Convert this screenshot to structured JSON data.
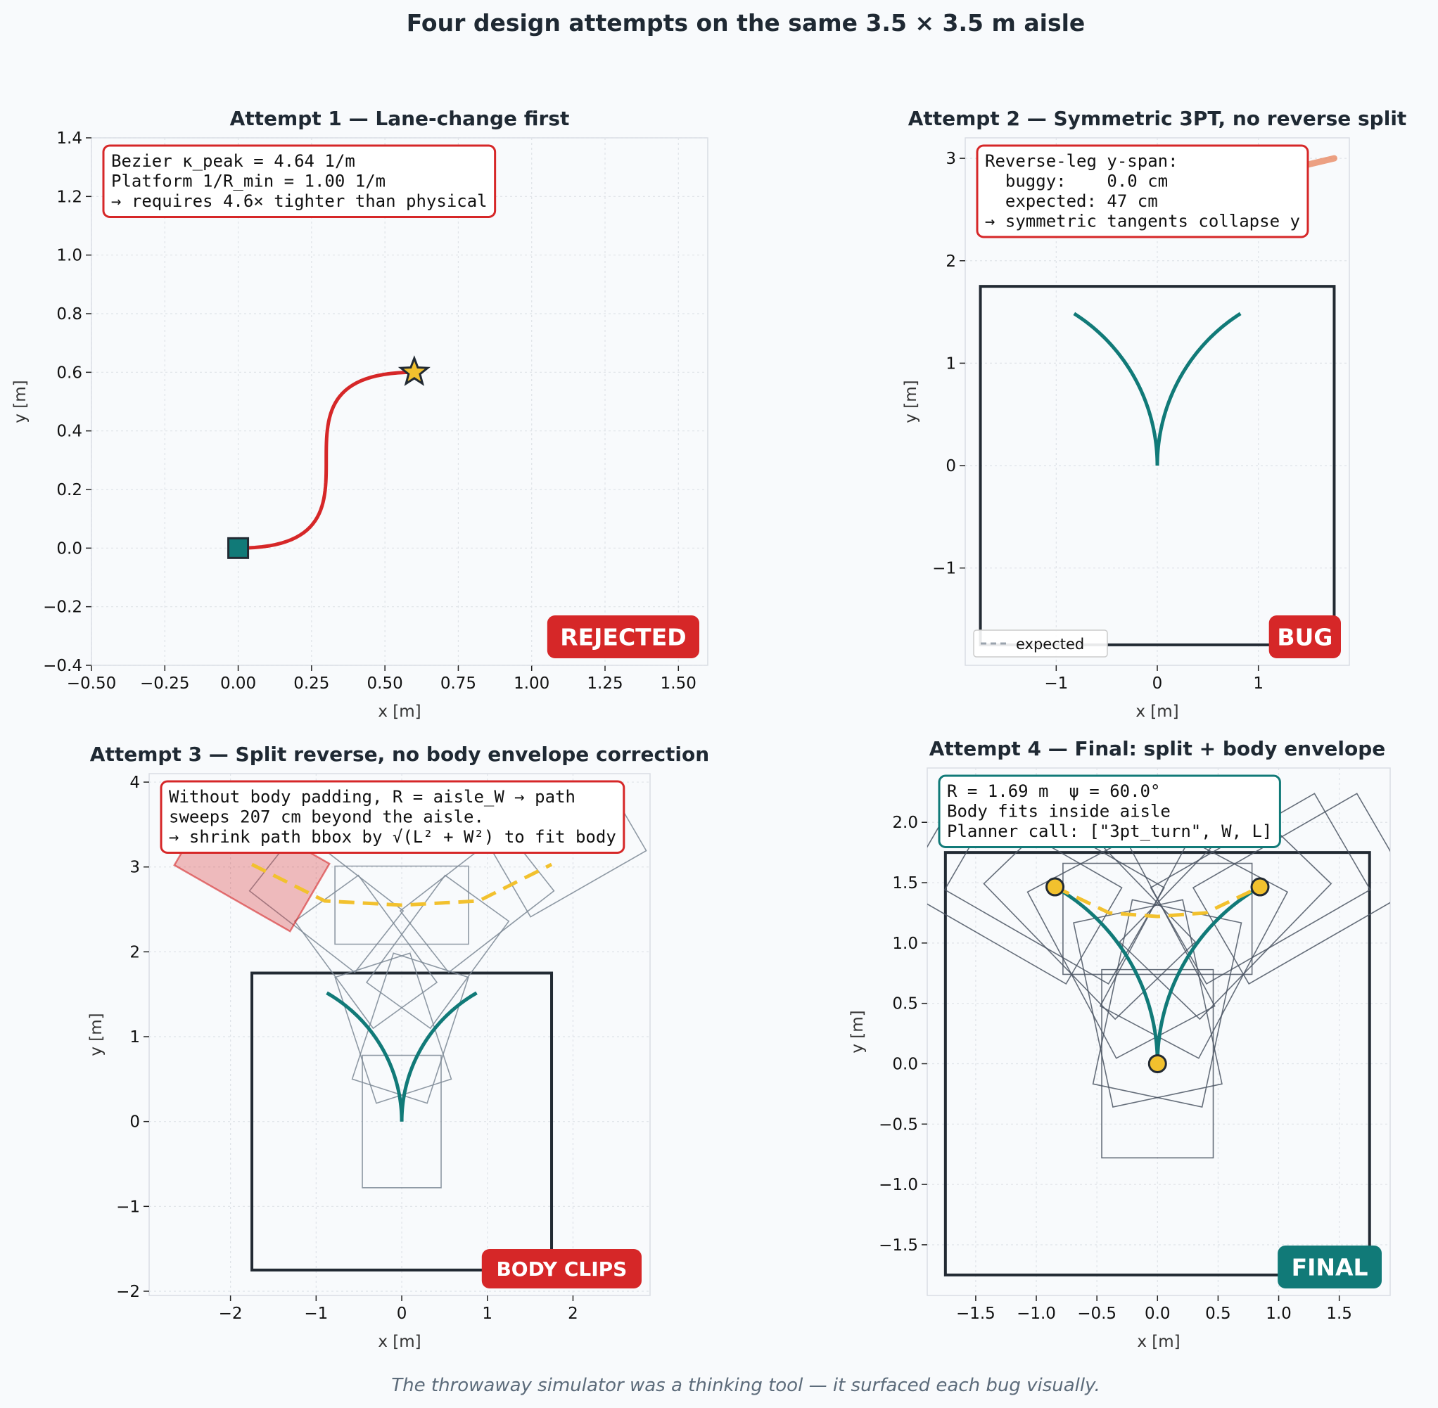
{
  "figure": {
    "title": "Four design attempts on the same 3.5 × 3.5 m aisle",
    "footer": "The throwaway simulator was a thinking tool — it surfaced each bug visually."
  },
  "colors": {
    "background": "#f8fafc",
    "teal": "#117a78",
    "red": "#d62728",
    "yellow": "#f2c12e",
    "aisle": "#222a33",
    "body_outline": "#7b8794"
  },
  "chart_data": [
    {
      "id": "attempt1",
      "type": "line",
      "title": "Attempt 1 — Lane-change first",
      "xlabel": "x [m]",
      "ylabel": "y [m]",
      "xlim": [
        -0.5,
        1.6
      ],
      "ylim": [
        -0.4,
        1.4
      ],
      "xticks": [
        -0.5,
        -0.25,
        0.0,
        0.25,
        0.5,
        0.75,
        1.0,
        1.25,
        1.5
      ],
      "xtick_labels": [
        "−0.50",
        "−0.25",
        "0.00",
        "0.25",
        "0.50",
        "0.75",
        "1.00",
        "1.25",
        "1.50"
      ],
      "yticks": [
        -0.4,
        -0.2,
        0.0,
        0.2,
        0.4,
        0.6,
        0.8,
        1.0,
        1.2,
        1.4
      ],
      "ytick_labels": [
        "−0.4",
        "−0.2",
        "0.0",
        "0.2",
        "0.4",
        "0.6",
        "0.8",
        "1.0",
        "1.2",
        "1.4"
      ],
      "grid": true,
      "path": {
        "type": "bezier",
        "control_points": [
          [
            0.0,
            0.0
          ],
          [
            0.6,
            0.0
          ],
          [
            0.0,
            0.6
          ],
          [
            0.6,
            0.6
          ]
        ],
        "color": "#d62728"
      },
      "start_marker": {
        "x": 0.0,
        "y": 0.0,
        "shape": "square",
        "color": "#117a78"
      },
      "goal_marker": {
        "x": 0.6,
        "y": 0.6,
        "shape": "star",
        "color": "#f2c12e"
      },
      "annotation": [
        "Bezier κ_peak = 4.64 1/m",
        "Platform 1/R_min = 1.00 1/m",
        "→ requires 4.6× tighter than physical"
      ],
      "annotation_border": "#d62728",
      "badge": {
        "text": "REJECTED",
        "color": "#d62728"
      }
    },
    {
      "id": "attempt2",
      "type": "line",
      "title": "Attempt 2 — Symmetric 3PT, no reverse split",
      "xlabel": "x [m]",
      "ylabel": "y [m]",
      "xlim": [
        -1.9,
        1.9
      ],
      "ylim": [
        -1.95,
        3.2
      ],
      "xticks": [
        -1,
        0,
        1
      ],
      "xtick_labels": [
        "−1",
        "0",
        "1"
      ],
      "yticks": [
        -1,
        0,
        1,
        2,
        3
      ],
      "ytick_labels": [
        "−1",
        "0",
        "1",
        "2",
        "3"
      ],
      "grid": true,
      "aisle": {
        "x0": -1.75,
        "x1": 1.75,
        "y0": -1.75,
        "y1": 1.75
      },
      "arc_radius": 1.75,
      "arc_angle_deg": 58,
      "arc_color": "#117a78",
      "reverse_leg": {
        "from": [
          1.45,
          2.93
        ],
        "to": [
          1.75,
          3.0
        ],
        "color": "#e8825a"
      },
      "legend": {
        "entries": [
          "expected"
        ],
        "placement": "lower-left"
      },
      "annotation": [
        "Reverse-leg y-span:",
        "  buggy:    0.0 cm",
        "  expected: 47 cm",
        "→ symmetric tangents collapse y"
      ],
      "annotation_border": "#d62728",
      "badge": {
        "text": "BUG",
        "color": "#d62728"
      }
    },
    {
      "id": "attempt3",
      "type": "line",
      "title": "Attempt 3 — Split reverse, no body envelope correction",
      "xlabel": "x [m]",
      "ylabel": "y [m]",
      "xlim": [
        -2.95,
        2.9
      ],
      "ylim": [
        -2.05,
        4.1
      ],
      "xticks": [
        -2,
        -1,
        0,
        1,
        2
      ],
      "xtick_labels": [
        "−2",
        "−1",
        "0",
        "1",
        "2"
      ],
      "yticks": [
        -2,
        -1,
        0,
        1,
        2,
        3,
        4
      ],
      "ytick_labels": [
        "−2",
        "−1",
        "0",
        "1",
        "2",
        "3",
        "4"
      ],
      "grid": true,
      "aisle": {
        "x0": -1.75,
        "x1": 1.75,
        "y0": -1.75,
        "y1": 1.75
      },
      "arc_radius": 1.75,
      "arc_angle_deg": 60,
      "arc_color": "#117a78",
      "body": {
        "length": 1.56,
        "width": 0.92,
        "outline": "#7b8794"
      },
      "body_poses": [
        {
          "x": 0.0,
          "y": 0.0,
          "heading_deg": 0
        },
        {
          "x": 0.1,
          "y": 1.1,
          "heading_deg": -18
        },
        {
          "x": 0.42,
          "y": 2.0,
          "heading_deg": -36
        },
        {
          "x": 0.88,
          "y": 2.6,
          "heading_deg": -52
        },
        {
          "x": -0.1,
          "y": 1.1,
          "heading_deg": 18
        },
        {
          "x": -0.42,
          "y": 2.0,
          "heading_deg": 36
        },
        {
          "x": -0.88,
          "y": 2.6,
          "heading_deg": 52
        },
        {
          "x": 0.0,
          "y": 2.55,
          "heading_deg": 90
        },
        {
          "x": 1.95,
          "y": 3.2,
          "heading_deg": -60
        }
      ],
      "clipped_body": {
        "x": -1.75,
        "y": 3.03,
        "heading_deg": 60,
        "color": "#d62728"
      },
      "reverse_leg": {
        "points": [
          [
            -1.75,
            3.03
          ],
          [
            -0.9,
            2.6
          ],
          [
            0.0,
            2.55
          ],
          [
            0.9,
            2.6
          ],
          [
            1.75,
            3.03
          ]
        ],
        "color": "#f2c12e"
      },
      "annotation": [
        "Without body padding, R = aisle_W → path",
        "sweeps 207 cm beyond the aisle.",
        "→ shrink path bbox by √(L² + W²) to fit body"
      ],
      "annotation_border": "#d62728",
      "badge": {
        "text": "BODY CLIPS",
        "color": "#d62728"
      }
    },
    {
      "id": "attempt4",
      "type": "line",
      "title": "Attempt 4 — Final: split + body envelope",
      "xlabel": "x [m]",
      "ylabel": "y [m]",
      "xlim": [
        -1.9,
        1.92
      ],
      "ylim": [
        -1.92,
        2.45
      ],
      "xticks": [
        -1.5,
        -1.0,
        -0.5,
        0.0,
        0.5,
        1.0,
        1.5
      ],
      "xtick_labels": [
        "−1.5",
        "−1.0",
        "−0.5",
        "0.0",
        "0.5",
        "1.0",
        "1.5"
      ],
      "yticks": [
        -1.5,
        -1.0,
        -0.5,
        0.0,
        0.5,
        1.0,
        1.5,
        2.0
      ],
      "ytick_labels": [
        "−1.5",
        "−1.0",
        "−0.5",
        "0.0",
        "0.5",
        "1.0",
        "1.5",
        "2.0"
      ],
      "grid": true,
      "aisle": {
        "x0": -1.75,
        "x1": 1.75,
        "y0": -1.75,
        "y1": 1.75
      },
      "arc_radius": 1.69,
      "arc_angle_deg": 60,
      "arc_color": "#117a78",
      "body": {
        "length": 1.56,
        "width": 0.92,
        "outline": "#4b5563"
      },
      "body_poses": [
        {
          "x": 0.0,
          "y": 0.0,
          "heading_deg": 0
        },
        {
          "x": 0.08,
          "y": 0.5,
          "heading_deg": -12
        },
        {
          "x": 0.3,
          "y": 0.95,
          "heading_deg": -28
        },
        {
          "x": 0.56,
          "y": 1.25,
          "heading_deg": -44
        },
        {
          "x": 0.85,
          "y": 1.45,
          "heading_deg": -60
        },
        {
          "x": -0.08,
          "y": 0.5,
          "heading_deg": 12
        },
        {
          "x": -0.3,
          "y": 0.95,
          "heading_deg": 28
        },
        {
          "x": -0.56,
          "y": 1.25,
          "heading_deg": 44
        },
        {
          "x": -0.85,
          "y": 1.45,
          "heading_deg": 60
        },
        {
          "x": 0.0,
          "y": 1.2,
          "heading_deg": 90
        },
        {
          "x": 1.2,
          "y": 1.45,
          "heading_deg": -60
        },
        {
          "x": -1.2,
          "y": 1.45,
          "heading_deg": 60
        }
      ],
      "waypoints": [
        [
          0.0,
          0.0
        ],
        [
          -0.846,
          1.465
        ],
        [
          0.846,
          1.465
        ]
      ],
      "waypoint_color": "#f2c12e",
      "reverse_leg": {
        "points": [
          [
            -0.846,
            1.465
          ],
          [
            -0.4,
            1.25
          ],
          [
            0.0,
            1.22
          ],
          [
            0.4,
            1.25
          ],
          [
            0.846,
            1.465
          ]
        ],
        "color": "#f2c12e"
      },
      "annotation": [
        "R = 1.69 m  ψ = 60.0°",
        "Body fits inside aisle",
        "Planner call: [\"3pt_turn\", W, L]"
      ],
      "annotation_border": "#117a78",
      "badge": {
        "text": "FINAL",
        "color": "#117a78"
      }
    }
  ]
}
